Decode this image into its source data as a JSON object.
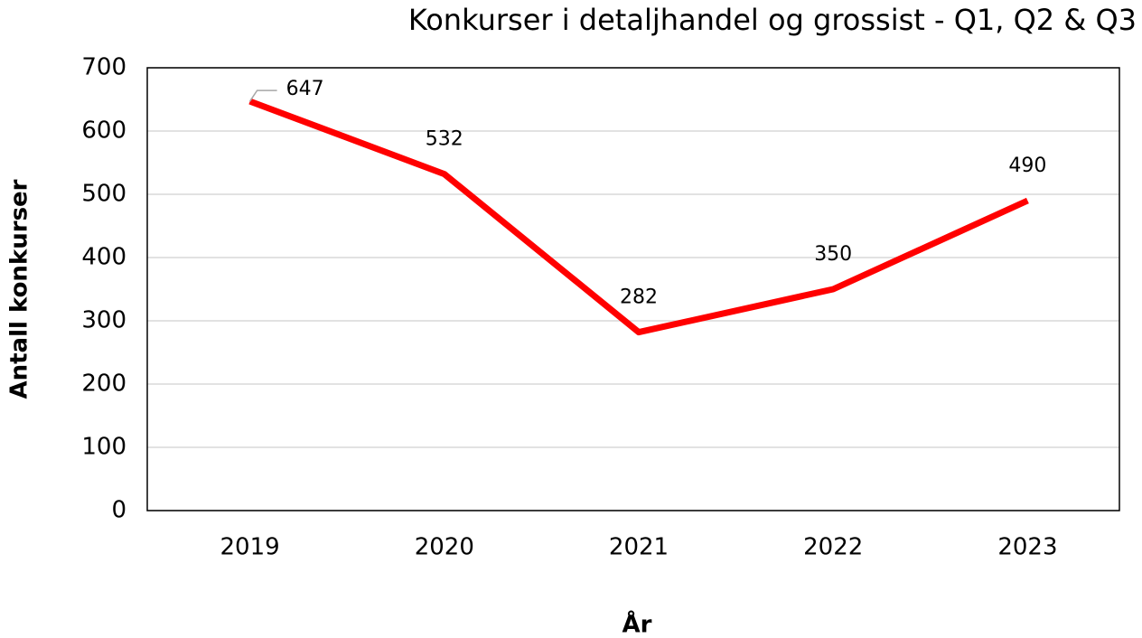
{
  "chart_data": {
    "type": "line",
    "title": "Konkurser i detaljhandel og grossist - Q1, Q2 & Q3",
    "x_label": "År",
    "y_label": "Antall konkurser",
    "categories": [
      "2019",
      "2020",
      "2021",
      "2022",
      "2023"
    ],
    "series": [
      {
        "name": "Antall konkurser",
        "color": "#ff0000",
        "values": [
          647,
          532,
          282,
          350,
          490
        ]
      }
    ],
    "ylim": [
      0,
      700
    ],
    "yticks": [
      0,
      100,
      200,
      300,
      400,
      500,
      600,
      700
    ],
    "grid": true
  }
}
